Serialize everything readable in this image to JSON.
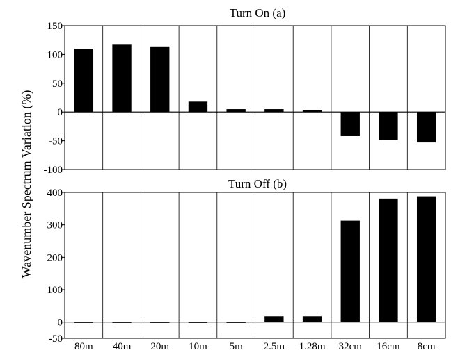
{
  "chart_data": [
    {
      "type": "bar",
      "title": "Turn On (a)",
      "ylabel": "Wavenumber Spectrum Variation (%)",
      "ylim": [
        -100,
        150
      ],
      "yticks": [
        -100,
        -50,
        0,
        50,
        100,
        150
      ],
      "categories": [
        "80m",
        "40m",
        "20m",
        "10m",
        "5m",
        "2.5m",
        "1.28m",
        "32cm",
        "16cm",
        "8cm"
      ],
      "values": [
        110,
        117,
        114,
        18,
        5,
        5,
        3,
        -42,
        -49,
        -53
      ],
      "grid": "vertical category separators"
    },
    {
      "type": "bar",
      "title": "Turn Off (b)",
      "ylim": [
        -50,
        400
      ],
      "yticks": [
        -50,
        0,
        100,
        200,
        300,
        400
      ],
      "categories": [
        "80m",
        "40m",
        "20m",
        "10m",
        "5m",
        "2.5m",
        "1.28m",
        "32cm",
        "16cm",
        "8cm"
      ],
      "values": [
        -2,
        -2,
        -2,
        -2,
        -1,
        18,
        18,
        313,
        381,
        388
      ],
      "grid": "vertical category separators"
    }
  ]
}
